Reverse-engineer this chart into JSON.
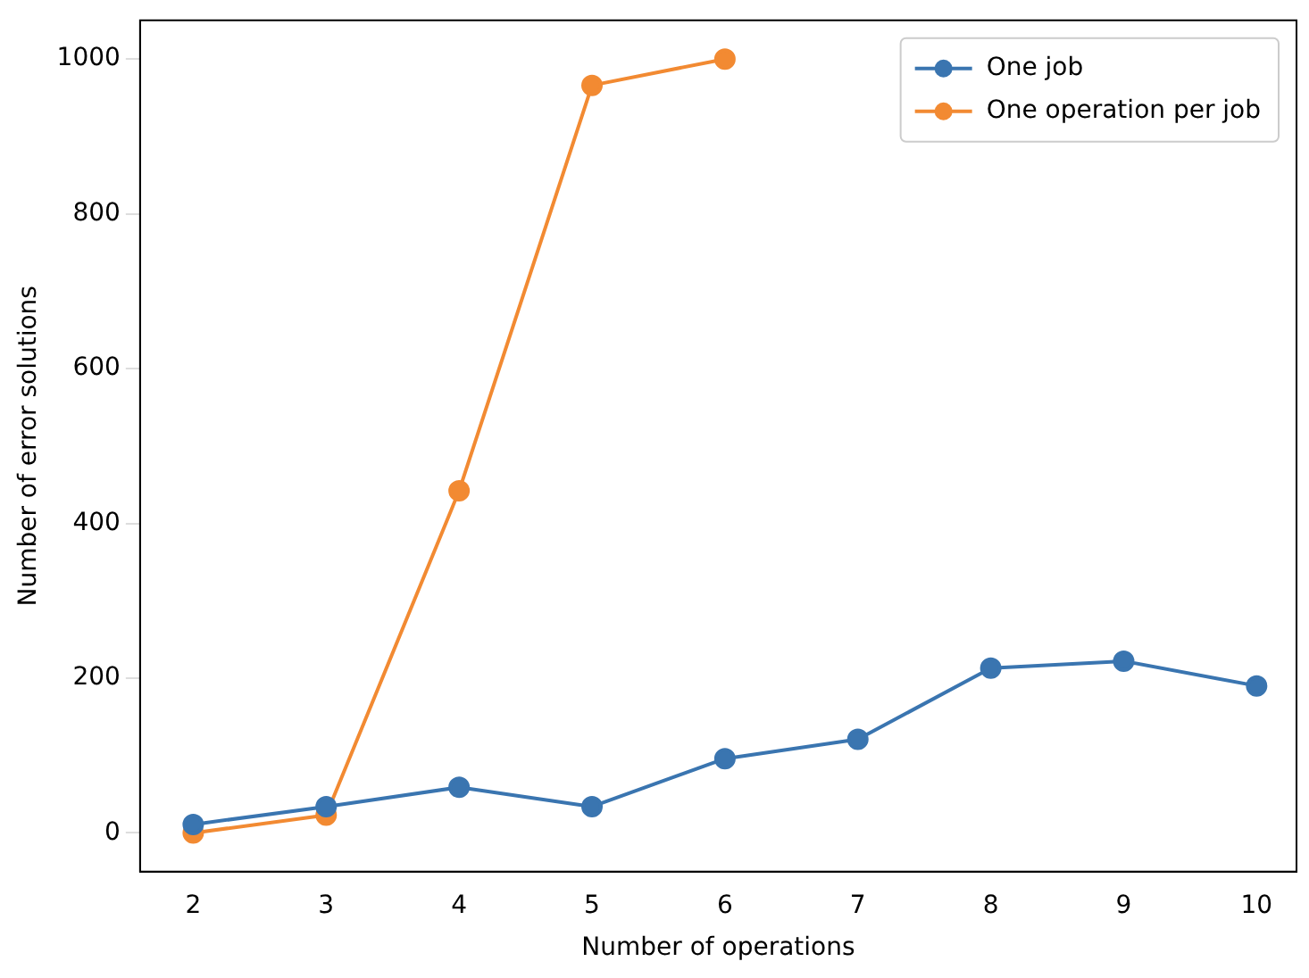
{
  "chart_data": {
    "type": "line",
    "xlabel": "Number of operations",
    "ylabel": "Number of error solutions",
    "x": [
      2,
      3,
      4,
      5,
      6,
      7,
      8,
      9,
      10
    ],
    "xlim": [
      1.6,
      10.3
    ],
    "xticks": [
      2,
      3,
      4,
      5,
      6,
      7,
      8,
      9,
      10
    ],
    "ylim": [
      -50,
      1050
    ],
    "yticks": [
      0,
      200,
      400,
      600,
      800,
      1000
    ],
    "series": [
      {
        "name": "One job",
        "color": "#3a75b0",
        "values": [
          11,
          34,
          59,
          34,
          96,
          121,
          213,
          222,
          190
        ]
      },
      {
        "name": "One operation per job",
        "color": "#f28a32",
        "values": [
          0,
          23,
          442,
          966,
          1000,
          null,
          null,
          null,
          null
        ]
      }
    ],
    "marker": "circle",
    "line_style": "solid",
    "legend": "top right",
    "grid": false
  }
}
